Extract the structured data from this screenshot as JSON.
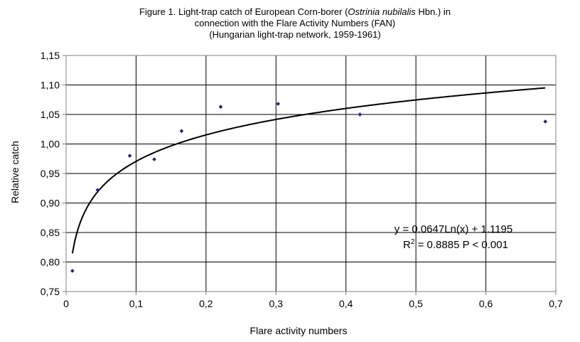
{
  "chart_data": {
    "type": "scatter",
    "title": {
      "line1_prefix": "Figure 1. Light-trap catch of European Corn-borer (",
      "line1_italic": "Ostrinia nubilalis",
      "line1_suffix": " Hbn.) in",
      "line2": "connection with the Flare Activity Numbers (FAN)",
      "line3": "(Hungarian light-trap network, 1959-1961)"
    },
    "xlabel": "Flare activity numbers",
    "ylabel": "Relative catch",
    "xlim": [
      0,
      0.7
    ],
    "ylim": [
      0.75,
      1.15
    ],
    "x_ticks": [
      0,
      0.1,
      0.2,
      0.3,
      0.4,
      0.5,
      0.6,
      0.7
    ],
    "x_tick_labels": [
      "0",
      "0,1",
      "0,2",
      "0,3",
      "0,4",
      "0,5",
      "0,6",
      "0,7"
    ],
    "y_ticks": [
      0.75,
      0.8,
      0.85,
      0.9,
      0.95,
      1.0,
      1.05,
      1.1,
      1.15
    ],
    "y_tick_labels": [
      "0,75",
      "0,80",
      "0,85",
      "0,90",
      "0,95",
      "1,00",
      "1,05",
      "1,10",
      "1,15"
    ],
    "grid": true,
    "points": [
      {
        "x": 0.009,
        "y": 0.785
      },
      {
        "x": 0.045,
        "y": 0.922
      },
      {
        "x": 0.091,
        "y": 0.98
      },
      {
        "x": 0.126,
        "y": 0.974
      },
      {
        "x": 0.165,
        "y": 1.022
      },
      {
        "x": 0.221,
        "y": 1.063
      },
      {
        "x": 0.303,
        "y": 1.068
      },
      {
        "x": 0.42,
        "y": 1.05
      },
      {
        "x": 0.685,
        "y": 1.038
      }
    ],
    "point_color": "#1f1f8f",
    "trendline": {
      "type": "log",
      "a": 0.0647,
      "b": 1.1195,
      "x_range": [
        0.009,
        0.685
      ],
      "color": "#000000"
    },
    "annotations": {
      "equation": "y = 0.0647Ln(x) + 1.1195",
      "r2_prefix": "R",
      "r2_sup": "2",
      "r2_suffix": " = 0.8885 P < 0.001"
    }
  }
}
